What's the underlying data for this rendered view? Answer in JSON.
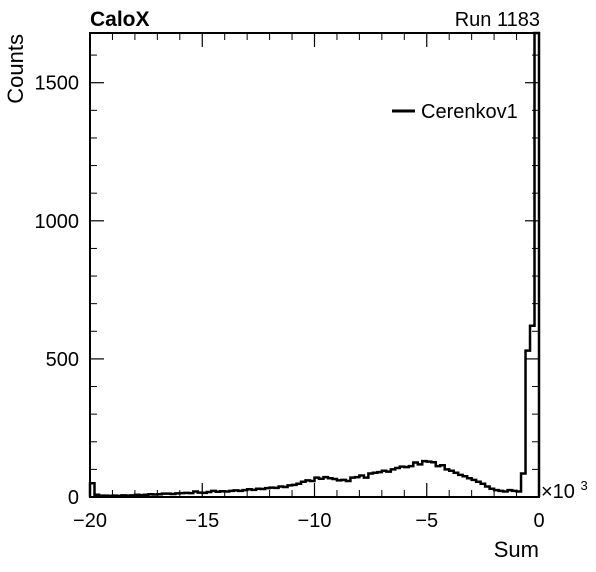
{
  "header": {
    "left_label": "CaloX",
    "right_label": "Run 1183"
  },
  "chart_data": {
    "type": "histogram",
    "xlabel": "Sum",
    "ylabel": "Counts",
    "x_exponent_label": "×10",
    "x_exponent_power": "3",
    "xlim": [
      -20,
      0
    ],
    "ylim": [
      0,
      1680
    ],
    "x_ticks": [
      -20,
      -15,
      -10,
      -5,
      0
    ],
    "y_ticks": [
      0,
      500,
      1000,
      1500
    ],
    "grid": false,
    "legend_position": "top-right",
    "series": [
      {
        "name": "Cerenkov1",
        "color": "#000000",
        "bin_edges_start": -20,
        "bin_width": 0.2,
        "values": [
          50,
          8,
          5,
          5,
          4,
          5,
          4,
          6,
          5,
          6,
          8,
          7,
          8,
          10,
          9,
          10,
          12,
          12,
          11,
          13,
          14,
          15,
          14,
          20,
          16,
          15,
          18,
          22,
          19,
          21,
          20,
          22,
          24,
          22,
          25,
          28,
          26,
          30,
          29,
          32,
          34,
          33,
          38,
          36,
          42,
          44,
          48,
          55,
          60,
          58,
          70,
          66,
          72,
          68,
          65,
          60,
          62,
          58,
          70,
          72,
          78,
          70,
          85,
          88,
          90,
          95,
          92,
          100,
          105,
          110,
          108,
          112,
          125,
          118,
          130,
          128,
          126,
          112,
          115,
          100,
          95,
          88,
          80,
          75,
          68,
          62,
          55,
          48,
          38,
          30,
          25,
          22,
          20,
          25,
          22,
          20,
          85,
          530,
          620,
          1680
        ]
      }
    ]
  }
}
